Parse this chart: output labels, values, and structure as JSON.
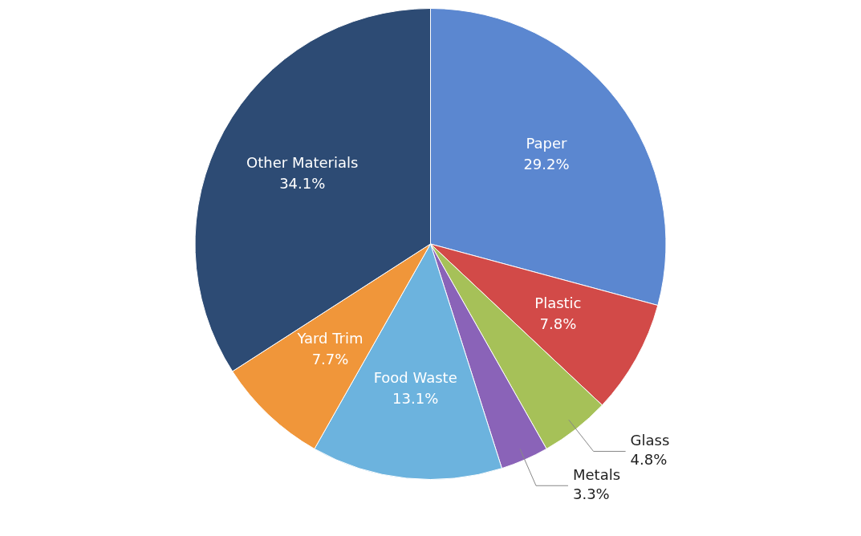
{
  "chart_data": {
    "type": "pie",
    "categories": [
      "Paper",
      "Plastic",
      "Glass",
      "Metals",
      "Food Waste",
      "Yard Trim",
      "Other Materials"
    ],
    "values": [
      29.2,
      7.8,
      4.8,
      3.3,
      13.1,
      7.7,
      34.1
    ],
    "value_labels": [
      "29.2%",
      "7.8%",
      "4.8%",
      "3.3%",
      "13.1%",
      "7.7%",
      "34.1%"
    ],
    "colors": [
      "#5b87d0",
      "#d24a48",
      "#a6c158",
      "#8a63b8",
      "#6cb3de",
      "#f0963a",
      "#2d4b74"
    ],
    "legend": false
  }
}
